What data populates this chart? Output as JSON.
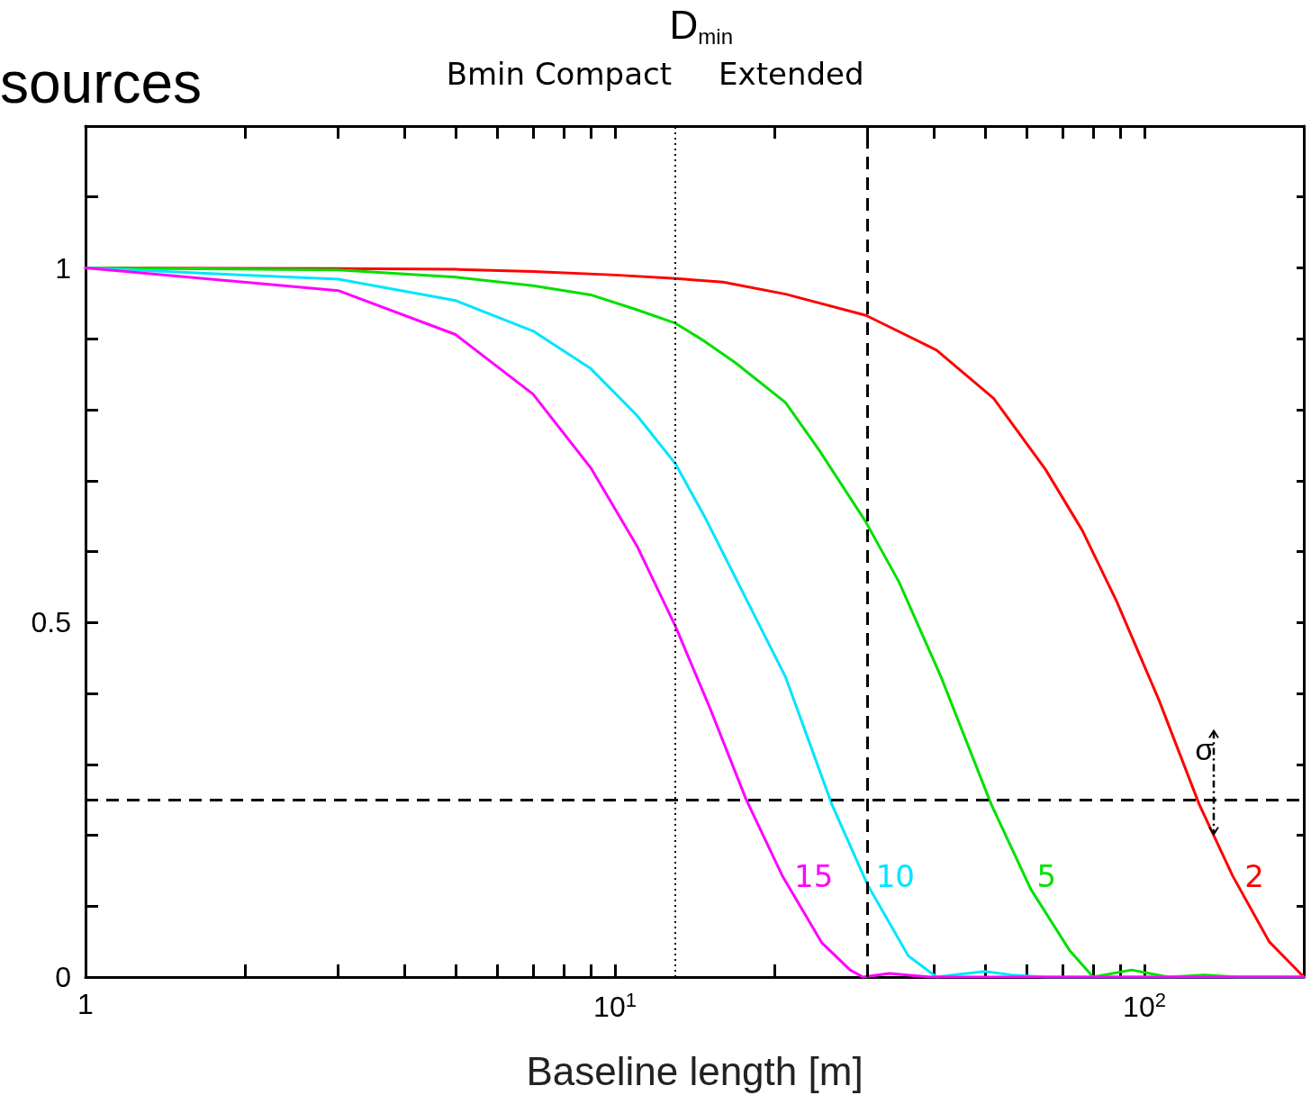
{
  "chart_data": {
    "type": "line",
    "title": "sources",
    "xlabel": "Baseline length [m]",
    "log": "x",
    "xlim": [
      1,
      200
    ],
    "ylim": [
      0,
      1.2
    ],
    "xticks": [
      {
        "value": 1,
        "label": "1"
      },
      {
        "value": 2,
        "label": null
      },
      {
        "value": 3,
        "label": null
      },
      {
        "value": 4,
        "label": null
      },
      {
        "value": 5,
        "label": null
      },
      {
        "value": 6,
        "label": null
      },
      {
        "value": 7,
        "label": null
      },
      {
        "value": 8,
        "label": null
      },
      {
        "value": 9,
        "label": null
      },
      {
        "value": 10,
        "label": "10$^{1}$"
      },
      {
        "value": 20,
        "label": null
      },
      {
        "value": 30,
        "label": null
      },
      {
        "value": 40,
        "label": null
      },
      {
        "value": 50,
        "label": null
      },
      {
        "value": 60,
        "label": null
      },
      {
        "value": 70,
        "label": null
      },
      {
        "value": 80,
        "label": null
      },
      {
        "value": 90,
        "label": null
      },
      {
        "value": 100,
        "label": "10$^{2}$"
      }
    ],
    "yticks": [
      0,
      {
        "value": 0.1,
        "label": null
      },
      {
        "value": 0.2,
        "label": null
      },
      {
        "value": 0.3,
        "label": null
      },
      {
        "value": 0.4,
        "label": null
      },
      0.5,
      {
        "value": 0.6,
        "label": null
      },
      {
        "value": 0.7,
        "label": null
      },
      {
        "value": 0.8,
        "label": null
      },
      {
        "value": 0.9,
        "label": null
      },
      1,
      {
        "value": 1.1,
        "label": null
      }
    ],
    "grid": false,
    "legend": false,
    "marker": "none",
    "line_style": "solid",
    "series": [
      {
        "name": "2",
        "color": "#ff0000",
        "x": [
          1,
          3,
          5,
          7,
          10,
          13,
          16,
          21,
          29.8,
          40.5,
          51.9,
          65,
          76.3,
          88.6,
          106.6,
          127,
          146.7,
          172,
          200
        ],
        "values": [
          1,
          0.999,
          0.998,
          0.995,
          0.99,
          0.985,
          0.98,
          0.963,
          0.933,
          0.884,
          0.816,
          0.716,
          0.63,
          0.53,
          0.39,
          0.243,
          0.143,
          0.05,
          0
        ]
      },
      {
        "name": "5",
        "color": "#00e000",
        "x": [
          1,
          3,
          5,
          7,
          9,
          11,
          13,
          14.8,
          16.9,
          21,
          24.3,
          29.7,
          34.4,
          41.3,
          51.4,
          61,
          72.3,
          80,
          94.5,
          111,
          130,
          150,
          200
        ],
        "values": [
          1,
          0.997,
          0.987,
          0.975,
          0.962,
          0.941,
          0.922,
          0.896,
          0.866,
          0.81,
          0.743,
          0.643,
          0.557,
          0.423,
          0.243,
          0.124,
          0.037,
          0,
          0.01,
          0,
          0.003,
          0,
          0
        ]
      },
      {
        "name": "10",
        "color": "#00e5ff",
        "x": [
          1,
          3,
          5,
          7,
          9,
          11,
          13,
          14.8,
          21,
          25.7,
          30,
          35.8,
          40.5,
          45,
          50,
          56,
          65,
          200
        ],
        "values": [
          1,
          0.984,
          0.954,
          0.911,
          0.858,
          0.792,
          0.724,
          0.648,
          0.423,
          0.243,
          0.13,
          0.03,
          0,
          0.004,
          0.008,
          0.003,
          0,
          0
        ]
      },
      {
        "name": "15",
        "color": "#ff00ff",
        "x": [
          1,
          3,
          5,
          7,
          9,
          11,
          13,
          15.1,
          17.7,
          20.7,
          24.6,
          27.8,
          29.4,
          33,
          39.4,
          200
        ],
        "values": [
          1,
          0.968,
          0.906,
          0.822,
          0.718,
          0.608,
          0.495,
          0.38,
          0.25,
          0.143,
          0.048,
          0.01,
          0,
          0.005,
          0,
          0
        ]
      }
    ],
    "ref_lines": [
      {
        "axis": "x",
        "value": 13,
        "label": "Bmin Compact",
        "color": "#000000",
        "line_style": "dotted"
      },
      {
        "axis": "x",
        "value": 30,
        "label": "Extended",
        "color": "#000000",
        "line_style": "dashed"
      },
      {
        "axis": "y",
        "value": 0.25,
        "label": null,
        "color": "#000000",
        "line_style": "dashed"
      }
    ],
    "annotations": [
      "D$_{min}$",
      {
        "text": "σ",
        "x": 135,
        "y": 0.2
      }
    ]
  }
}
